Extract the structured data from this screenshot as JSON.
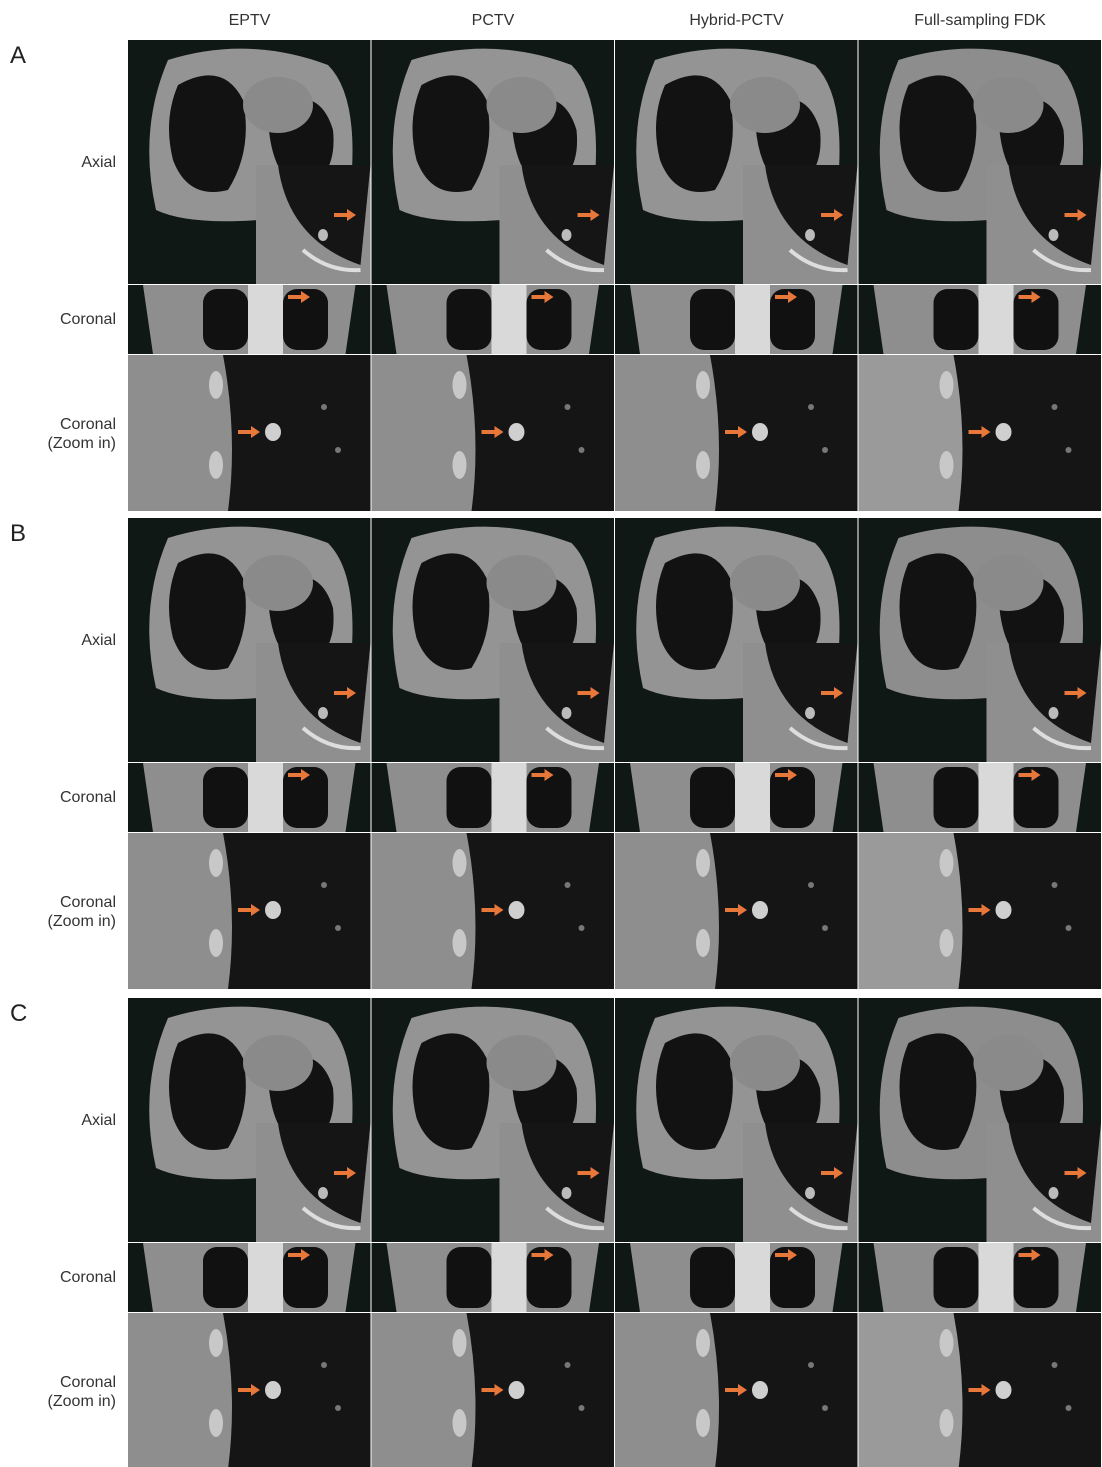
{
  "columns": [
    "EPTV",
    "PCTV",
    "Hybrid-PCTV",
    "Full-sampling FDK"
  ],
  "panels": [
    {
      "label": "A",
      "rows": [
        "Axial",
        "Coronal",
        "Coronal (Zoom in)"
      ]
    },
    {
      "label": "B",
      "rows": [
        "Axial",
        "Coronal",
        "Coronal (Zoom in)"
      ]
    },
    {
      "label": "C",
      "rows": [
        "Axial",
        "Coronal",
        "Coronal (Zoom in)"
      ]
    }
  ]
}
